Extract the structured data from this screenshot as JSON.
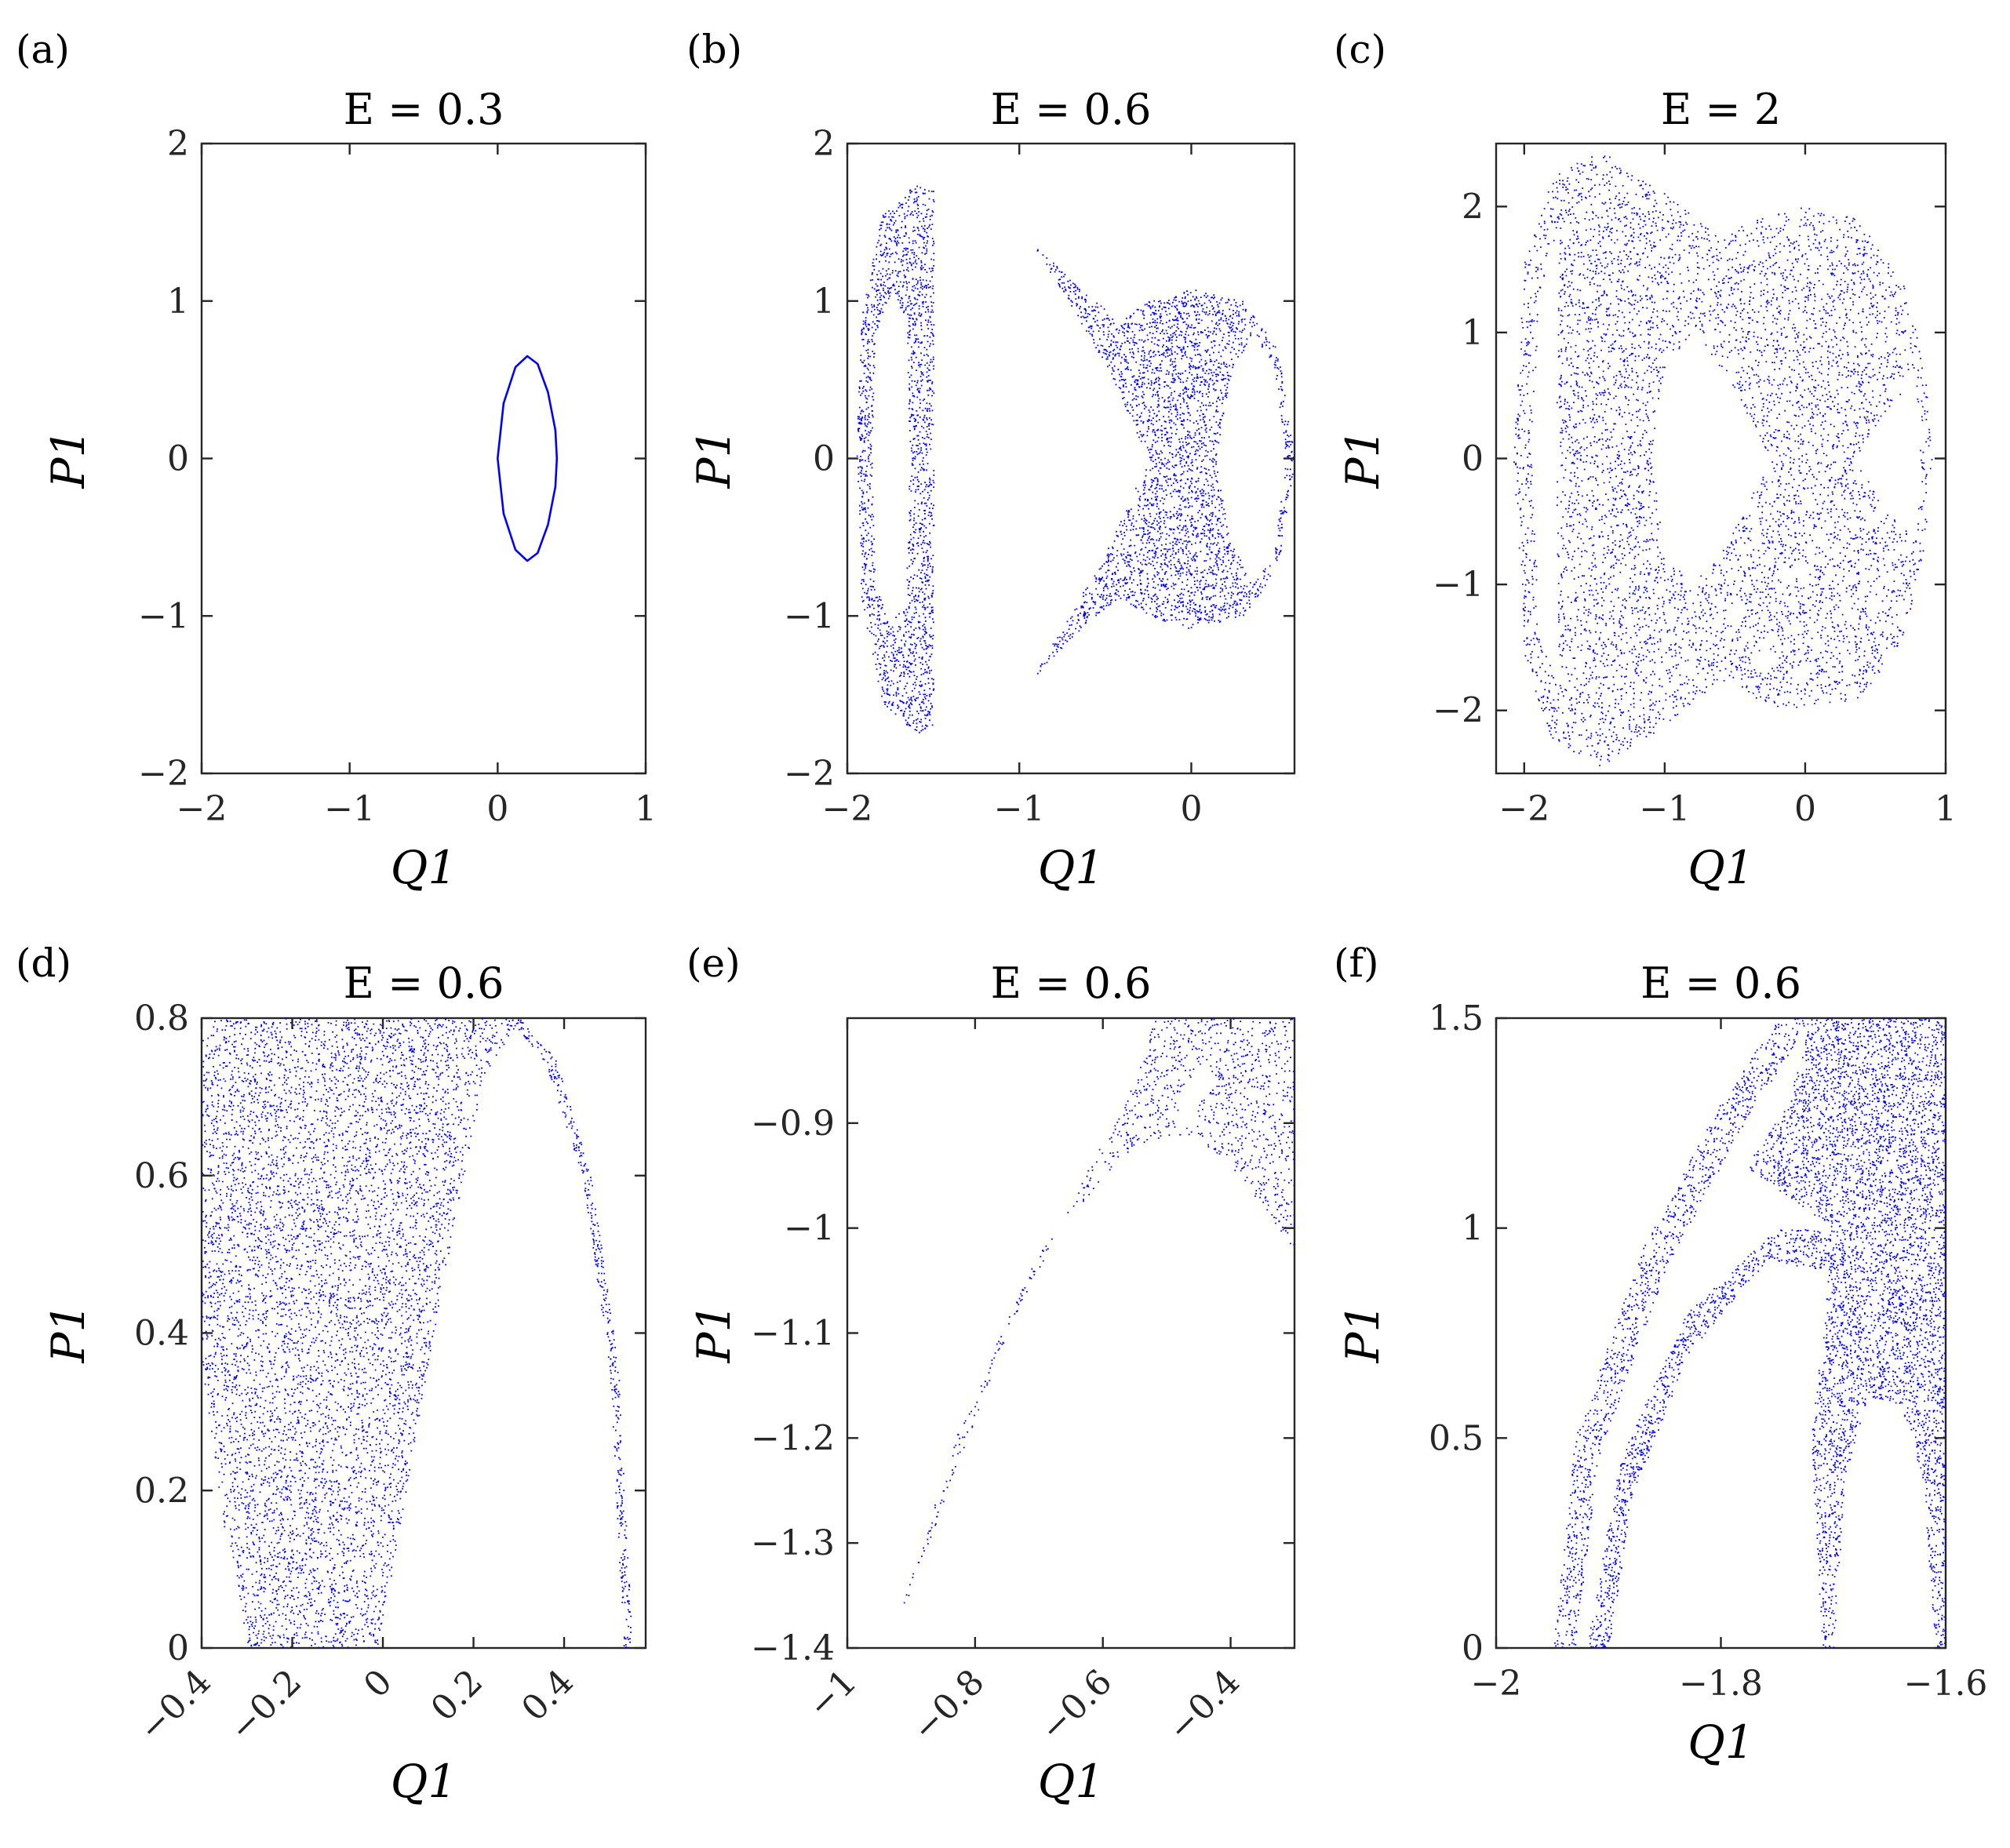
{
  "figure": {
    "dot_color": "#0000ff",
    "axis_color": "#262626"
  },
  "chart_data": [
    {
      "id": "a",
      "panel_label": "(a)",
      "type": "scatter",
      "title": "E = 0.3",
      "xlabel": "Q1",
      "ylabel": "P1",
      "xlim": [
        -2,
        1
      ],
      "ylim": [
        -2,
        2
      ],
      "xticks": [
        -2,
        -1,
        0,
        1
      ],
      "yticks": [
        -2,
        -1,
        0,
        1,
        2
      ],
      "xtick_labels": [
        "−2",
        "−1",
        "0",
        "1"
      ],
      "ytick_labels": [
        "−2",
        "−1",
        "0",
        "1",
        "2"
      ],
      "series": [
        {
          "shape": "closed-curve",
          "points": [
            [
              0.0,
              0.0
            ],
            [
              0.04,
              0.35
            ],
            [
              0.12,
              0.58
            ],
            [
              0.2,
              0.65
            ],
            [
              0.27,
              0.6
            ],
            [
              0.34,
              0.42
            ],
            [
              0.39,
              0.18
            ],
            [
              0.4,
              0.0
            ],
            [
              0.39,
              -0.18
            ],
            [
              0.34,
              -0.42
            ],
            [
              0.27,
              -0.6
            ],
            [
              0.2,
              -0.65
            ],
            [
              0.12,
              -0.58
            ],
            [
              0.04,
              -0.35
            ]
          ]
        }
      ]
    },
    {
      "id": "b",
      "panel_label": "(b)",
      "type": "scatter",
      "title": "E = 0.6",
      "xlabel": "Q1",
      "ylabel": "P1",
      "xlim": [
        -2,
        0.6
      ],
      "ylim": [
        -2,
        2
      ],
      "xticks": [
        -2,
        -1,
        0
      ],
      "yticks": [
        -2,
        -1,
        0,
        1,
        2
      ],
      "xtick_labels": [
        "−2",
        "−1",
        "0"
      ],
      "ytick_labels": [
        "−2",
        "−1",
        "0",
        "1",
        "2"
      ],
      "series": [
        {
          "shape": "filled-region",
          "points": [
            [
              -1.95,
              0.0
            ],
            [
              -1.92,
              0.9
            ],
            [
              -1.8,
              1.55
            ],
            [
              -1.6,
              1.75
            ],
            [
              -1.5,
              1.7
            ],
            [
              -1.5,
              -1.7
            ],
            [
              -1.6,
              -1.75
            ],
            [
              -1.8,
              -1.55
            ],
            [
              -1.92,
              -0.9
            ]
          ]
        },
        {
          "shape": "hole",
          "points": [
            [
              -1.86,
              0.0
            ],
            [
              -1.84,
              0.8
            ],
            [
              -1.75,
              1.05
            ],
            [
              -1.66,
              0.9
            ],
            [
              -1.64,
              0.0
            ],
            [
              -1.66,
              -0.9
            ],
            [
              -1.75,
              -1.05
            ],
            [
              -1.84,
              -0.8
            ]
          ]
        },
        {
          "shape": "filled-region",
          "points": [
            [
              -0.93,
              1.38
            ],
            [
              -0.62,
              1.05
            ],
            [
              -0.42,
              0.88
            ],
            [
              -0.25,
              1.0
            ],
            [
              0.0,
              1.08
            ],
            [
              0.3,
              1.0
            ],
            [
              0.5,
              0.7
            ],
            [
              0.6,
              0.0
            ],
            [
              0.5,
              -0.7
            ],
            [
              0.3,
              -1.0
            ],
            [
              0.0,
              -1.08
            ],
            [
              -0.25,
              -1.0
            ],
            [
              -0.42,
              -0.88
            ],
            [
              -0.62,
              -1.05
            ],
            [
              -0.93,
              -1.4
            ],
            [
              -0.5,
              -0.6
            ],
            [
              -0.25,
              0.0
            ],
            [
              -0.5,
              0.6
            ]
          ]
        },
        {
          "shape": "hole",
          "points": [
            [
              0.14,
              0.0
            ],
            [
              0.22,
              0.5
            ],
            [
              0.35,
              0.8
            ],
            [
              0.48,
              0.6
            ],
            [
              0.55,
              0.0
            ],
            [
              0.48,
              -0.6
            ],
            [
              0.35,
              -0.8
            ],
            [
              0.22,
              -0.5
            ]
          ]
        }
      ]
    },
    {
      "id": "c",
      "panel_label": "(c)",
      "type": "scatter",
      "title": "E = 2",
      "xlabel": "Q1",
      "ylabel": "P1",
      "xlim": [
        -2.2,
        1
      ],
      "ylim": [
        -2.5,
        2.5
      ],
      "xticks": [
        -2,
        -1,
        0,
        1
      ],
      "yticks": [
        -2,
        -1,
        0,
        1,
        2
      ],
      "xtick_labels": [
        "−2",
        "−1",
        "0",
        "1"
      ],
      "ytick_labels": [
        "−2",
        "−1",
        "0",
        "1",
        "2"
      ],
      "series": [
        {
          "shape": "filled-region",
          "points": [
            [
              -2.08,
              0.0
            ],
            [
              -2.0,
              1.6
            ],
            [
              -1.8,
              2.25
            ],
            [
              -1.45,
              2.45
            ],
            [
              -1.05,
              2.15
            ],
            [
              -0.6,
              1.75
            ],
            [
              -0.3,
              1.95
            ],
            [
              0.0,
              2.0
            ],
            [
              0.4,
              1.9
            ],
            [
              0.7,
              1.4
            ],
            [
              0.85,
              0.7
            ],
            [
              0.9,
              0.0
            ],
            [
              0.85,
              -0.7
            ],
            [
              0.7,
              -1.4
            ],
            [
              0.4,
              -1.9
            ],
            [
              0.0,
              -2.0
            ],
            [
              -0.3,
              -1.95
            ],
            [
              -0.6,
              -1.75
            ],
            [
              -1.05,
              -2.15
            ],
            [
              -1.45,
              -2.45
            ],
            [
              -1.8,
              -2.25
            ],
            [
              -2.0,
              -1.6
            ]
          ]
        },
        {
          "shape": "hole",
          "points": [
            [
              -1.1,
              0.0
            ],
            [
              -1.0,
              0.75
            ],
            [
              -0.8,
              1.0
            ],
            [
              -0.55,
              0.65
            ],
            [
              -0.25,
              0.0
            ],
            [
              -0.55,
              -0.65
            ],
            [
              -0.8,
              -1.0
            ],
            [
              -1.0,
              -0.75
            ]
          ]
        },
        {
          "shape": "hole",
          "points": [
            [
              0.35,
              0.0
            ],
            [
              0.55,
              0.35
            ],
            [
              0.78,
              0.65
            ],
            [
              0.82,
              0.0
            ],
            [
              0.78,
              -0.65
            ],
            [
              0.55,
              -0.35
            ]
          ]
        },
        {
          "shape": "hole",
          "points": [
            [
              -1.95,
              0.0
            ],
            [
              -1.9,
              1.3
            ],
            [
              -1.75,
              1.85
            ],
            [
              -1.78,
              0.0
            ],
            [
              -1.75,
              -1.85
            ],
            [
              -1.9,
              -1.3
            ]
          ]
        }
      ]
    },
    {
      "id": "d",
      "panel_label": "(d)",
      "type": "scatter",
      "title": "E = 0.6",
      "xlabel": "Q1",
      "ylabel": "P1",
      "xlim": [
        -0.4,
        0.58
      ],
      "ylim": [
        0,
        0.8
      ],
      "xticks": [
        -0.4,
        -0.2,
        0,
        0.2,
        0.4
      ],
      "yticks": [
        0,
        0.2,
        0.4,
        0.6,
        0.8
      ],
      "xtick_labels": [
        "−0.4",
        "−0.2",
        "0",
        "0.2",
        "0.4"
      ],
      "ytick_labels": [
        "0",
        "0.2",
        "0.4",
        "0.6",
        "0.8"
      ],
      "series": [
        {
          "shape": "filled-region",
          "points": [
            [
              -0.4,
              0.8
            ],
            [
              0.3,
              0.8
            ],
            [
              0.22,
              0.72
            ],
            [
              0.16,
              0.55
            ],
            [
              0.08,
              0.3
            ],
            [
              0.02,
              0.1
            ],
            [
              -0.01,
              0.0
            ],
            [
              -0.3,
              0.0
            ],
            [
              -0.35,
              0.15
            ],
            [
              -0.4,
              0.35
            ]
          ]
        },
        {
          "shape": "band",
          "points": [
            [
              0.3,
              0.8
            ],
            [
              0.38,
              0.75
            ],
            [
              0.46,
              0.6
            ],
            [
              0.52,
              0.35
            ],
            [
              0.55,
              0.0
            ],
            [
              0.53,
              0.0
            ],
            [
              0.5,
              0.35
            ],
            [
              0.44,
              0.6
            ],
            [
              0.36,
              0.74
            ],
            [
              0.28,
              0.8
            ]
          ]
        }
      ]
    },
    {
      "id": "e",
      "panel_label": "(e)",
      "type": "scatter",
      "title": "E = 0.6",
      "xlabel": "Q1",
      "ylabel": "P1",
      "xlim": [
        -1,
        -0.3
      ],
      "ylim": [
        -1.4,
        -0.8
      ],
      "xticks": [
        -1,
        -0.8,
        -0.6,
        -0.4
      ],
      "yticks": [
        -1.4,
        -1.3,
        -1.2,
        -1.1,
        -1.0,
        -0.9
      ],
      "xtick_labels": [
        "−1",
        "−0.8",
        "−0.6",
        "−0.4"
      ],
      "ytick_labels": [
        "−1.4",
        "−1.3",
        "−1.2",
        "−1.1",
        "−1",
        "−0.9"
      ],
      "series": [
        {
          "shape": "filled-region",
          "points": [
            [
              -0.93,
              -1.39
            ],
            [
              -0.75,
              -1.1
            ],
            [
              -0.62,
              -0.94
            ],
            [
              -0.55,
              -0.86
            ],
            [
              -0.52,
              -0.8
            ],
            [
              -0.3,
              -0.8
            ],
            [
              -0.3,
              -1.02
            ],
            [
              -0.4,
              -0.94
            ],
            [
              -0.46,
              -0.91
            ],
            [
              -0.55,
              -0.92
            ],
            [
              -0.7,
              -1.02
            ],
            [
              -0.82,
              -1.18
            ]
          ]
        },
        {
          "shape": "hole",
          "points": [
            [
              -0.49,
              -0.91
            ],
            [
              -0.45,
              -0.88
            ],
            [
              -0.42,
              -0.86
            ],
            [
              -0.44,
              -0.84
            ],
            [
              -0.47,
              -0.86
            ]
          ]
        }
      ]
    },
    {
      "id": "f",
      "panel_label": "(f)",
      "type": "scatter",
      "title": "E = 0.6",
      "xlabel": "Q1",
      "ylabel": "P1",
      "xlim": [
        -2,
        -1.6
      ],
      "ylim": [
        0,
        1.5
      ],
      "xticks": [
        -2,
        -1.8,
        -1.6
      ],
      "yticks": [
        0,
        0.5,
        1,
        1.5
      ],
      "xtick_labels": [
        "−2",
        "−1.8",
        "−1.6"
      ],
      "ytick_labels": [
        "0",
        "0.5",
        "1",
        "1.5"
      ],
      "series": [
        {
          "shape": "band",
          "points": [
            [
              -1.95,
              0.0
            ],
            [
              -1.93,
              0.5
            ],
            [
              -1.87,
              0.95
            ],
            [
              -1.8,
              1.3
            ],
            [
              -1.75,
              1.5
            ],
            [
              -1.72,
              1.5
            ],
            [
              -1.78,
              1.25
            ],
            [
              -1.85,
              0.9
            ],
            [
              -1.91,
              0.45
            ],
            [
              -1.93,
              0.0
            ]
          ]
        },
        {
          "shape": "band",
          "points": [
            [
              -1.92,
              0.0
            ],
            [
              -1.89,
              0.45
            ],
            [
              -1.83,
              0.8
            ],
            [
              -1.75,
              1.0
            ],
            [
              -1.7,
              1.0
            ],
            [
              -1.7,
              0.9
            ],
            [
              -1.76,
              0.92
            ],
            [
              -1.83,
              0.7
            ],
            [
              -1.88,
              0.35
            ],
            [
              -1.9,
              0.0
            ]
          ]
        },
        {
          "shape": "filled-region",
          "points": [
            [
              -1.72,
              1.5
            ],
            [
              -1.6,
              1.5
            ],
            [
              -1.6,
              0.0
            ],
            [
              -1.61,
              0.0
            ],
            [
              -1.62,
              0.4
            ],
            [
              -1.64,
              0.58
            ],
            [
              -1.67,
              0.6
            ],
            [
              -1.69,
              0.4
            ],
            [
              -1.7,
              0.0
            ],
            [
              -1.71,
              0.0
            ],
            [
              -1.72,
              0.5
            ],
            [
              -1.7,
              1.0
            ],
            [
              -1.78,
              1.15
            ],
            [
              -1.74,
              1.3
            ]
          ]
        }
      ]
    }
  ]
}
